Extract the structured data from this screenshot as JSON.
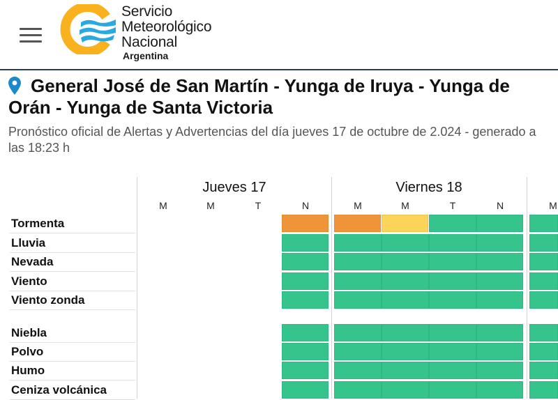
{
  "header": {
    "brand_line1": "Servicio",
    "brand_line2": "Meteorológico",
    "brand_line3": "Nacional",
    "brand_sub": "Argentina",
    "logo_colors": {
      "ring": "#f9b21d",
      "waves": "#29a9e0"
    }
  },
  "page": {
    "title": "General José de San Martín - Yunga de Iruya - Yunga de Orán - Yunga de Santa Victoria",
    "subtitle": "Pronóstico oficial de Alertas y Advertencias del día jueves 17 de octubre de 2.024 - generado a las 18:23 h",
    "pin_color": "#1e88c9"
  },
  "colors": {
    "green": "#34c48c",
    "orange": "#f0943a",
    "yellow": "#fcd45a"
  },
  "days": [
    {
      "label": "Jueves 17",
      "periods": [
        "M",
        "M",
        "T",
        "N"
      ]
    },
    {
      "label": "Viernes 18",
      "periods": [
        "M",
        "M",
        "T",
        "N"
      ]
    },
    {
      "label": "",
      "periods": [
        "M"
      ]
    }
  ],
  "rows": [
    {
      "label": "Tormenta",
      "cells": [
        "none",
        "none",
        "none",
        "orange",
        "orange",
        "yellow",
        "green",
        "green",
        "green"
      ]
    },
    {
      "label": "Lluvia",
      "cells": [
        "none",
        "none",
        "none",
        "green",
        "green",
        "green",
        "green",
        "green",
        "green"
      ]
    },
    {
      "label": "Nevada",
      "cells": [
        "none",
        "none",
        "none",
        "green",
        "green",
        "green",
        "green",
        "green",
        "green"
      ]
    },
    {
      "label": "Viento",
      "cells": [
        "none",
        "none",
        "none",
        "green",
        "green",
        "green",
        "green",
        "green",
        "green"
      ]
    },
    {
      "label": "Viento zonda",
      "cells": [
        "none",
        "none",
        "none",
        "green",
        "green",
        "green",
        "green",
        "green",
        "green"
      ]
    },
    {
      "label": "Niebla",
      "cells": [
        "none",
        "none",
        "none",
        "green",
        "green",
        "green",
        "green",
        "green",
        "green"
      ]
    },
    {
      "label": "Polvo",
      "cells": [
        "none",
        "none",
        "none",
        "green",
        "green",
        "green",
        "green",
        "green",
        "green"
      ]
    },
    {
      "label": "Humo",
      "cells": [
        "none",
        "none",
        "none",
        "green",
        "green",
        "green",
        "green",
        "green",
        "green"
      ]
    },
    {
      "label": "Ceniza volcánica",
      "cells": [
        "none",
        "none",
        "none",
        "green",
        "green",
        "green",
        "green",
        "green",
        "green"
      ]
    }
  ]
}
